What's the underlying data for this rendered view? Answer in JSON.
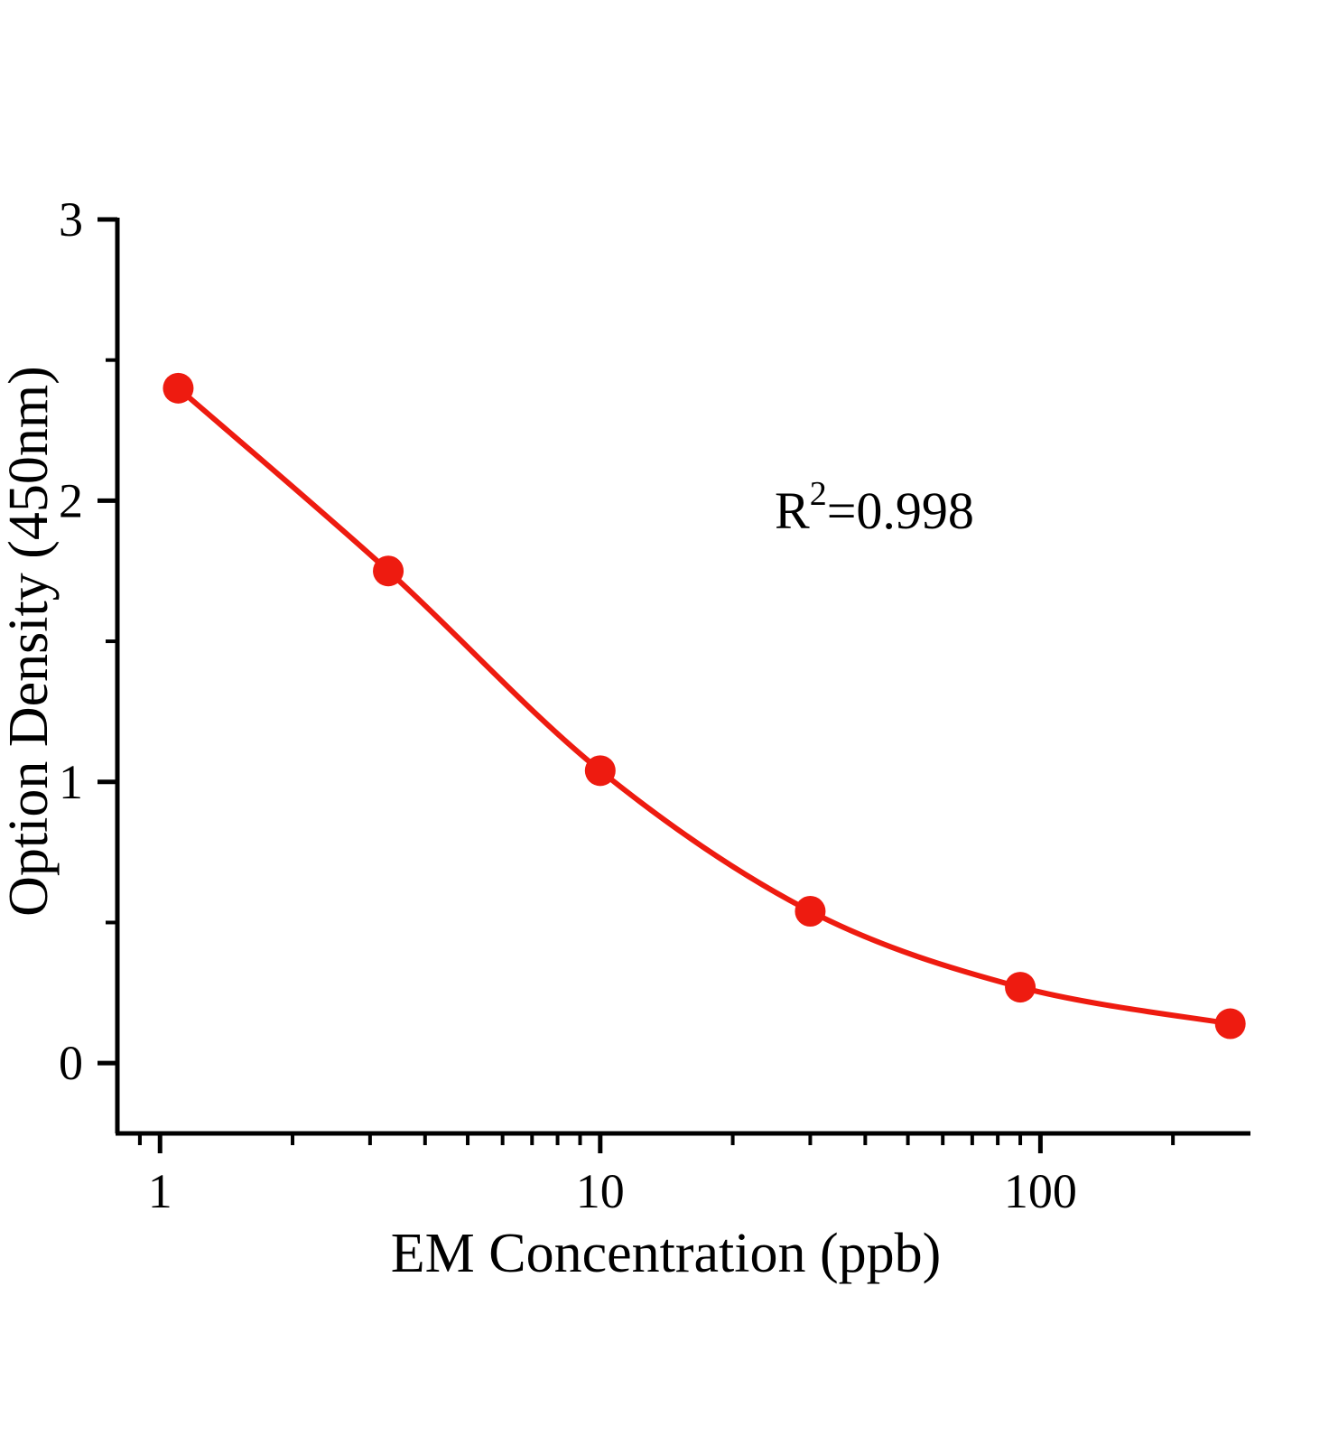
{
  "chart_data": {
    "type": "scatter",
    "title": "",
    "xlabel": "EM Concentration (ppb)",
    "ylabel": "Option Density (450nm)",
    "xscale": "log",
    "xlim": [
      0.8,
      300
    ],
    "ylim": [
      -0.25,
      3
    ],
    "x": [
      1.1,
      3.3,
      10,
      30,
      90,
      270
    ],
    "y": [
      2.4,
      1.75,
      1.04,
      0.54,
      0.27,
      0.14
    ],
    "x_major_ticks": [
      1,
      10,
      100
    ],
    "x_major_tick_labels": [
      "1",
      "10",
      "100"
    ],
    "y_major_ticks": [
      0,
      1,
      2,
      3
    ],
    "y_major_tick_labels": [
      "0",
      "1",
      "2",
      "3"
    ],
    "y_minor_step": 0.5,
    "curve": "smooth-through-points",
    "grid": false,
    "legend": "none",
    "annotation": {
      "base": "R",
      "superscript": "2",
      "rest": "=0.998",
      "full_text": "R2=0.998"
    },
    "colors": {
      "point": "#ee1b10",
      "line": "#ee1b10",
      "axis": "#000000",
      "text": "#000000",
      "background": "#ffffff"
    }
  }
}
